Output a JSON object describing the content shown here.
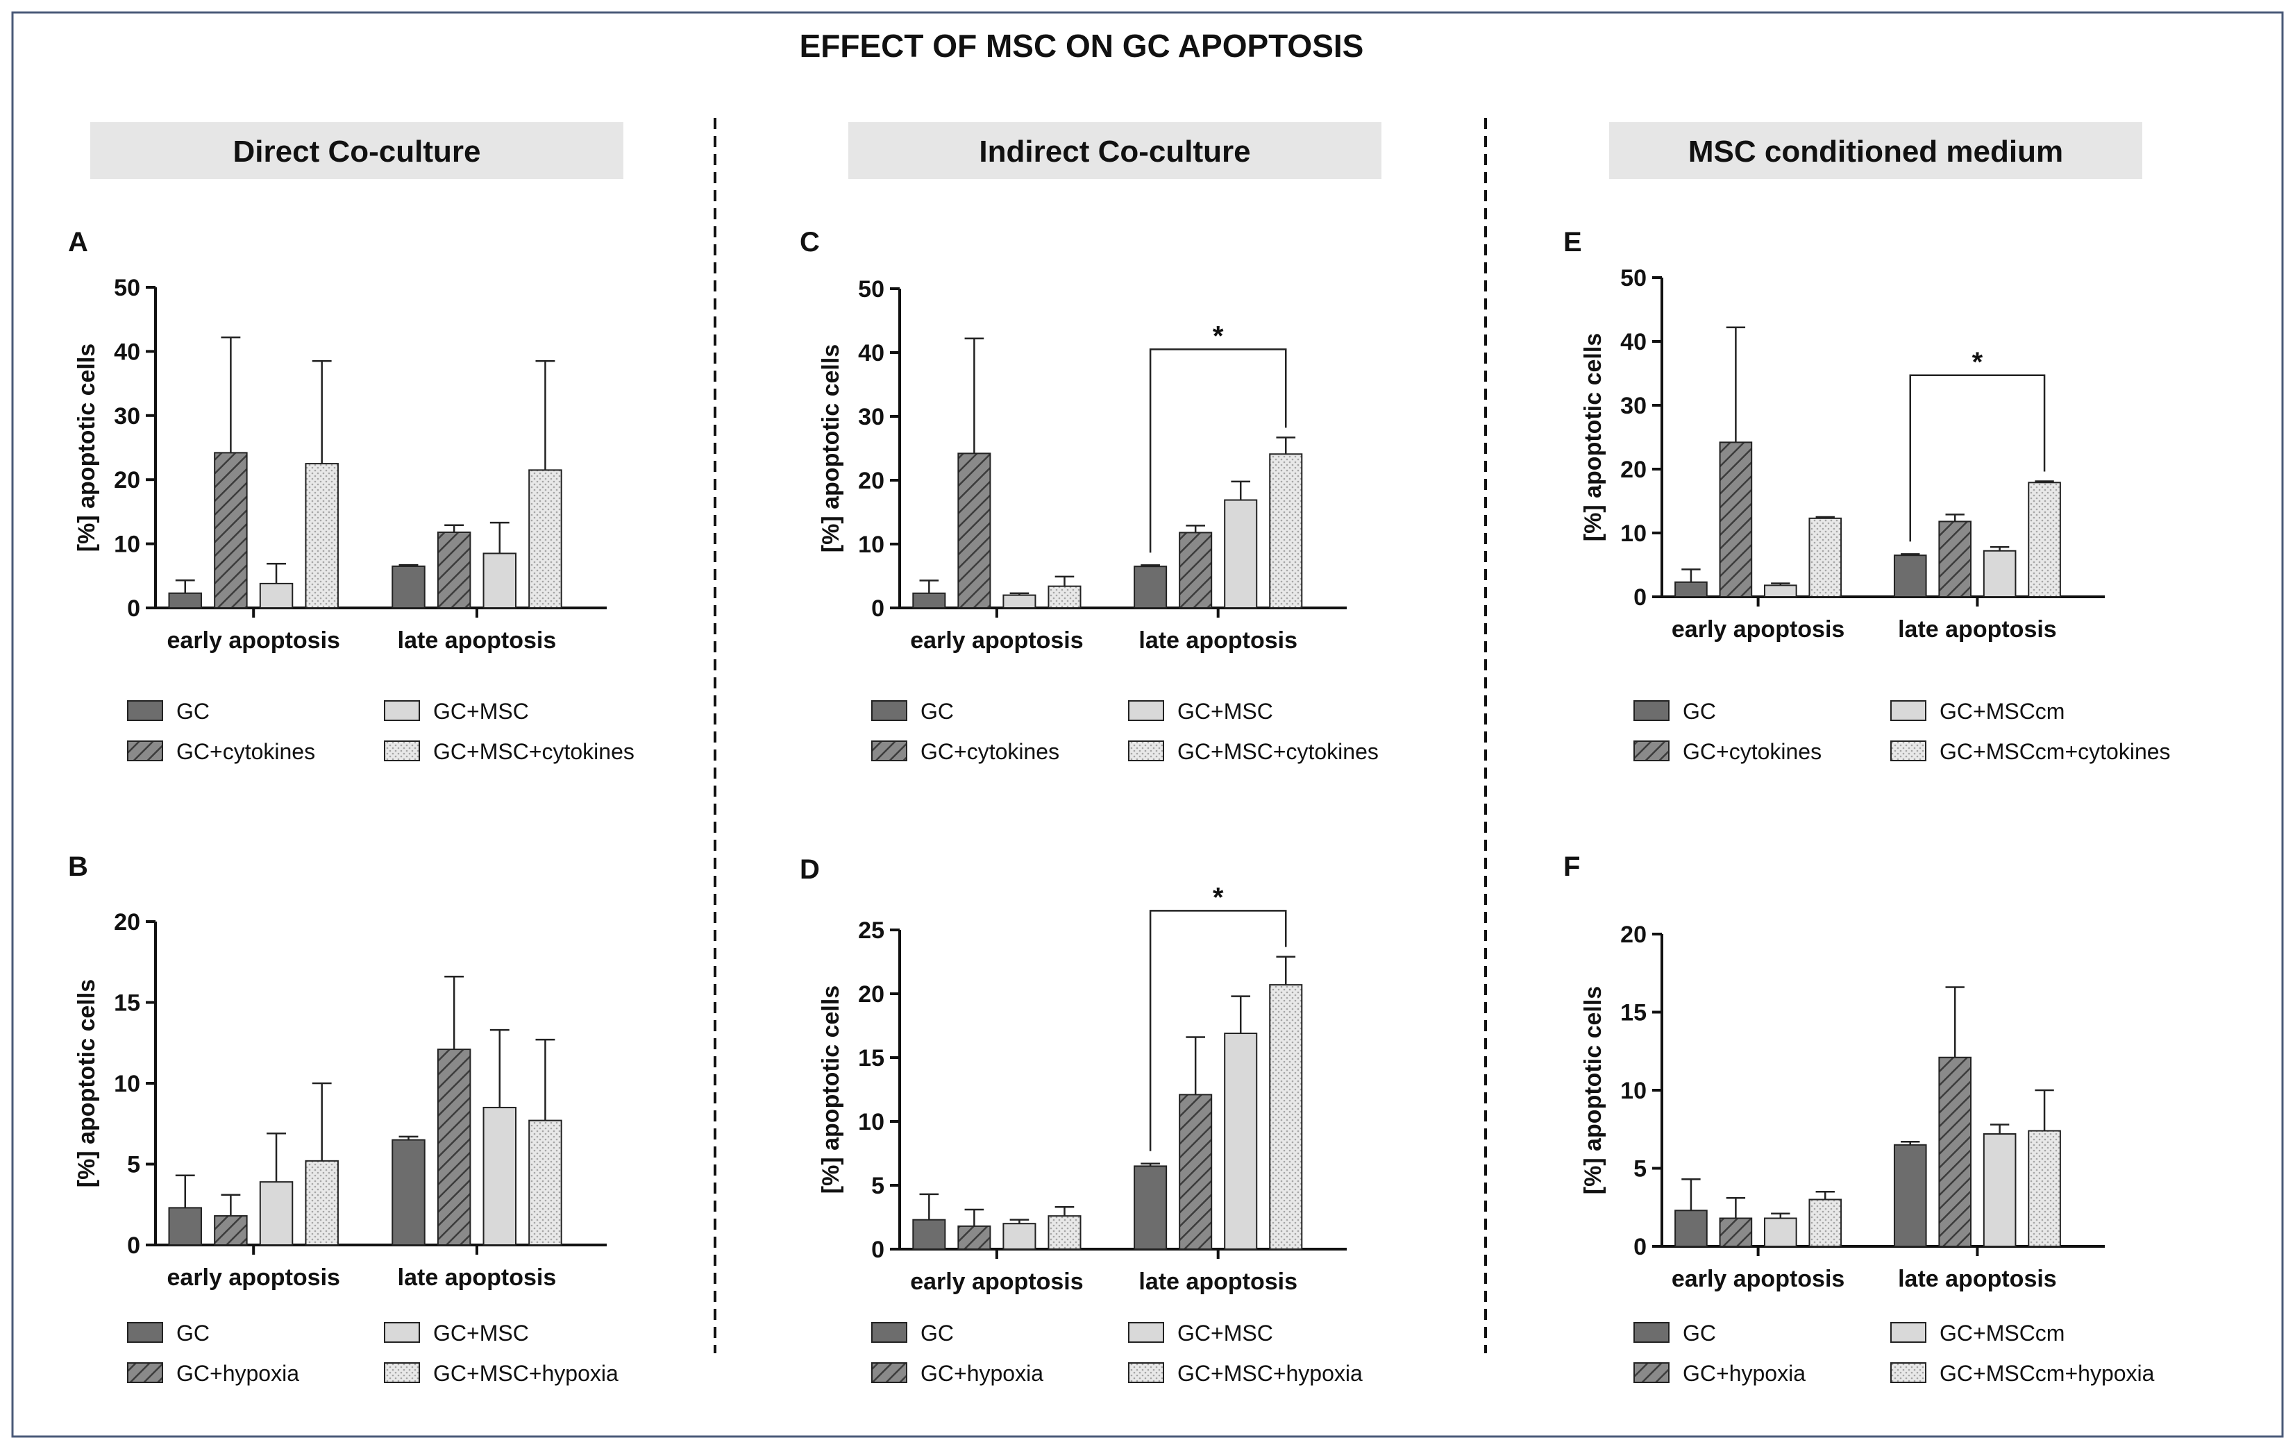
{
  "figure_title": "EFFECT OF MSC ON GC APOPTOSIS",
  "sections": [
    {
      "title": "Direct Co-culture"
    },
    {
      "title": "Indirect Co-culture"
    },
    {
      "title": "MSC conditioned medium"
    }
  ],
  "colors": {
    "bar_dark": "#6d6d6d",
    "bar_hatched": "#7a7a7a",
    "bar_light": "#d9d9d9",
    "bar_dotted": "#e2e2e2",
    "section_header_bg": "#e6e6e6",
    "frame": "#4a5a78"
  },
  "chart_data": [
    {
      "panel": "A",
      "type": "bar",
      "ylabel": "[%] apoptotic cells",
      "ylim": [
        0,
        50
      ],
      "yticks": [
        0,
        10,
        20,
        30,
        40,
        50
      ],
      "categories": [
        "early apoptosis",
        "late apoptosis"
      ],
      "series": [
        {
          "name": "GC",
          "style": "dark",
          "values": [
            2.3,
            6.5
          ],
          "errors": [
            2.0,
            0.2
          ]
        },
        {
          "name": "GC+cytokines",
          "style": "hatched",
          "values": [
            24.2,
            11.8
          ],
          "errors": [
            18.0,
            1.1
          ]
        },
        {
          "name": "GC+MSC",
          "style": "light",
          "values": [
            3.8,
            8.5
          ],
          "errors": [
            3.1,
            4.8
          ]
        },
        {
          "name": "GC+MSC+cytokines",
          "style": "dotted",
          "values": [
            22.5,
            21.5
          ],
          "errors": [
            16.0,
            17.0
          ]
        }
      ],
      "significance": null
    },
    {
      "panel": "B",
      "type": "bar",
      "ylabel": "[%] apoptotic cells",
      "ylim": [
        0,
        20
      ],
      "yticks": [
        0,
        5,
        10,
        15,
        20
      ],
      "categories": [
        "early apoptosis",
        "late apoptosis"
      ],
      "series": [
        {
          "name": "GC",
          "style": "dark",
          "values": [
            2.3,
            6.5
          ],
          "errors": [
            2.0,
            0.2
          ]
        },
        {
          "name": "GC+hypoxia",
          "style": "hatched",
          "values": [
            1.8,
            12.1
          ],
          "errors": [
            1.3,
            4.5
          ]
        },
        {
          "name": "GC+MSC",
          "style": "light",
          "values": [
            3.9,
            8.5
          ],
          "errors": [
            3.0,
            4.8
          ]
        },
        {
          "name": "GC+MSC+hypoxia",
          "style": "dotted",
          "values": [
            5.2,
            7.7
          ],
          "errors": [
            4.8,
            5.0
          ]
        }
      ],
      "significance": null
    },
    {
      "panel": "C",
      "type": "bar",
      "ylabel": "[%] apoptotic cells",
      "ylim": [
        0,
        50
      ],
      "yticks": [
        0,
        10,
        20,
        30,
        40,
        50
      ],
      "categories": [
        "early apoptosis",
        "late apoptosis"
      ],
      "series": [
        {
          "name": "GC",
          "style": "dark",
          "values": [
            2.3,
            6.5
          ],
          "errors": [
            2.0,
            0.2
          ]
        },
        {
          "name": "GC+cytokines",
          "style": "hatched",
          "values": [
            24.2,
            11.8
          ],
          "errors": [
            18.0,
            1.1
          ]
        },
        {
          "name": "GC+MSC",
          "style": "light",
          "values": [
            2.0,
            16.9
          ],
          "errors": [
            0.3,
            2.9
          ]
        },
        {
          "name": "GC+MSC+cytokines",
          "style": "dotted",
          "values": [
            3.4,
            24.1
          ],
          "errors": [
            1.5,
            2.6
          ]
        }
      ],
      "significance": {
        "label": "*",
        "from_series": 0,
        "to_series": 3,
        "category": 1,
        "bracket_value": 40.5
      }
    },
    {
      "panel": "D",
      "type": "bar",
      "ylabel": "[%] apoptotic cells",
      "ylim": [
        0,
        25
      ],
      "yticks": [
        0,
        5,
        10,
        15,
        20,
        25
      ],
      "categories": [
        "early apoptosis",
        "late apoptosis"
      ],
      "series": [
        {
          "name": "GC",
          "style": "dark",
          "values": [
            2.3,
            6.5
          ],
          "errors": [
            2.0,
            0.2
          ]
        },
        {
          "name": "GC+hypoxia",
          "style": "hatched",
          "values": [
            1.8,
            12.1
          ],
          "errors": [
            1.3,
            4.5
          ]
        },
        {
          "name": "GC+MSC",
          "style": "light",
          "values": [
            2.0,
            16.9
          ],
          "errors": [
            0.3,
            2.9
          ]
        },
        {
          "name": "GC+MSC+hypoxia",
          "style": "dotted",
          "values": [
            2.6,
            20.7
          ],
          "errors": [
            0.7,
            2.2
          ]
        }
      ],
      "significance": {
        "label": "*",
        "from_series": 0,
        "to_series": 3,
        "category": 1,
        "bracket_value": 26.5
      }
    },
    {
      "panel": "E",
      "type": "bar",
      "ylabel": "[%] apoptotic cells",
      "ylim": [
        0,
        50
      ],
      "yticks": [
        0,
        10,
        20,
        30,
        40,
        50
      ],
      "categories": [
        "early apoptosis",
        "late apoptosis"
      ],
      "series": [
        {
          "name": "GC",
          "style": "dark",
          "values": [
            2.3,
            6.5
          ],
          "errors": [
            2.0,
            0.2
          ]
        },
        {
          "name": "GC+cytokines",
          "style": "hatched",
          "values": [
            24.2,
            11.8
          ],
          "errors": [
            18.0,
            1.1
          ]
        },
        {
          "name": "GC+MSCcm",
          "style": "light",
          "values": [
            1.8,
            7.2
          ],
          "errors": [
            0.3,
            0.6
          ]
        },
        {
          "name": "GC+MSCcm+cytokines",
          "style": "dotted",
          "values": [
            12.3,
            17.9
          ],
          "errors": [
            0.2,
            0.2
          ]
        }
      ],
      "significance": {
        "label": "*",
        "from_series": 0,
        "to_series": 3,
        "category": 1,
        "bracket_value": 34.7
      }
    },
    {
      "panel": "F",
      "type": "bar",
      "ylabel": "[%] apoptotic cells",
      "ylim": [
        0,
        20
      ],
      "yticks": [
        0,
        5,
        10,
        15,
        20
      ],
      "categories": [
        "early apoptosis",
        "late apoptosis"
      ],
      "series": [
        {
          "name": "GC",
          "style": "dark",
          "values": [
            2.3,
            6.5
          ],
          "errors": [
            2.0,
            0.2
          ]
        },
        {
          "name": "GC+hypoxia",
          "style": "hatched",
          "values": [
            1.8,
            12.1
          ],
          "errors": [
            1.3,
            4.5
          ]
        },
        {
          "name": "GC+MSCcm",
          "style": "light",
          "values": [
            1.8,
            7.2
          ],
          "errors": [
            0.3,
            0.6
          ]
        },
        {
          "name": "GC+MSCcm+hypoxia",
          "style": "dotted",
          "values": [
            3.0,
            7.4
          ],
          "errors": [
            0.5,
            2.6
          ]
        }
      ],
      "significance": null
    }
  ]
}
